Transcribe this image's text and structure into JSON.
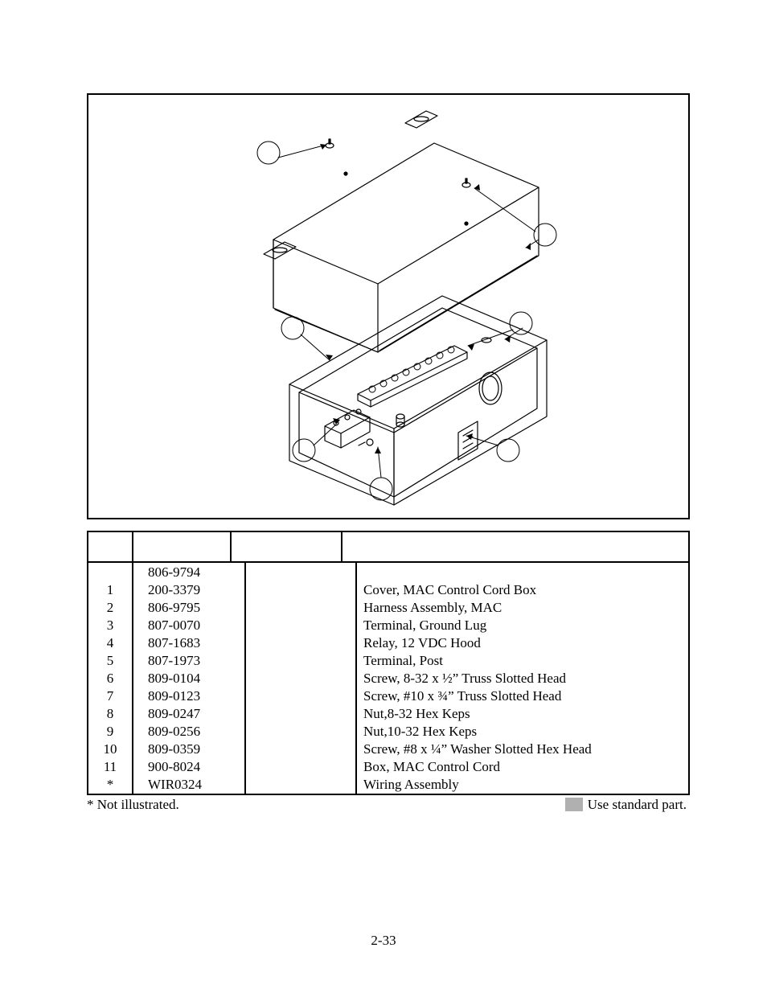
{
  "assembly_part": "806-9794",
  "rows": [
    {
      "item": "1",
      "part": "200-3379",
      "desc": "Cover, MAC Control Cord Box"
    },
    {
      "item": "2",
      "part": "806-9795",
      "desc": "Harness Assembly, MAC"
    },
    {
      "item": "3",
      "part": "807-0070",
      "desc": "Terminal, Ground Lug"
    },
    {
      "item": "4",
      "part": "807-1683",
      "desc": "Relay, 12 VDC Hood"
    },
    {
      "item": "5",
      "part": "807-1973",
      "desc": "Terminal, Post"
    },
    {
      "item": "6",
      "part": "809-0104",
      "desc": "Screw, 8-32 x ½” Truss Slotted Head"
    },
    {
      "item": "7",
      "part": "809-0123",
      "desc": "Screw, #10 x ¾” Truss Slotted Head"
    },
    {
      "item": "8",
      "part": "809-0247",
      "desc": "Nut,8-32 Hex Keps"
    },
    {
      "item": "9",
      "part": "809-0256",
      "desc": "Nut,10-32 Hex Keps"
    },
    {
      "item": "10",
      "part": "809-0359",
      "desc": "Screw, #8 x ¼” Washer Slotted Hex Head"
    },
    {
      "item": "11",
      "part": "900-8024",
      "desc": "Box, MAC Control Cord"
    },
    {
      "item": "*",
      "part": "WIR0324",
      "desc": "Wiring Assembly"
    }
  ],
  "foot_left": "* Not illustrated.",
  "foot_right": "Use standard part.",
  "page_number": "2-33",
  "svg": {
    "stroke": "#000000",
    "fill": "#ffffff",
    "stroke_w": 1.2,
    "callout_r": 14
  }
}
